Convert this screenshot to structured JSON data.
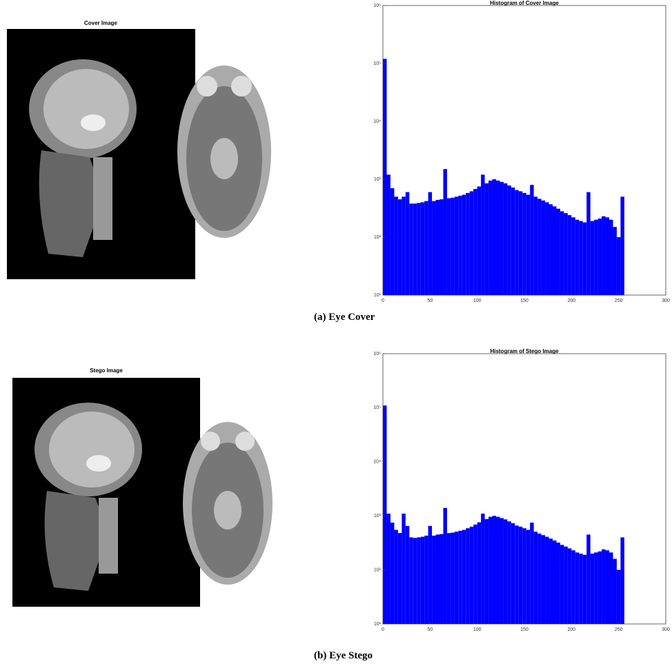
{
  "images": [
    {
      "title": "Cover Image"
    },
    {
      "title": "Stego Image"
    }
  ],
  "captions": [
    "(a) Eye Cover",
    "(b) Eye Stego"
  ],
  "chart_data": [
    {
      "type": "histogram",
      "title": "Histogram of Cover Image",
      "color": "#0000ff",
      "yscale": "log",
      "bins": [
        0,
        4,
        8,
        12,
        16,
        20,
        24,
        28,
        32,
        36,
        40,
        44,
        48,
        52,
        56,
        60,
        64,
        68,
        72,
        76,
        80,
        84,
        88,
        92,
        96,
        100,
        104,
        108,
        112,
        116,
        120,
        124,
        128,
        132,
        136,
        140,
        144,
        148,
        152,
        156,
        160,
        164,
        168,
        172,
        176,
        180,
        184,
        188,
        192,
        196,
        200,
        204,
        208,
        212,
        216,
        220,
        224,
        228,
        232,
        236,
        240,
        244,
        248,
        252,
        256
      ],
      "values": [
        120000,
        1200,
        700,
        500,
        450,
        500,
        600,
        380,
        380,
        390,
        400,
        420,
        600,
        420,
        440,
        450,
        1500,
        470,
        480,
        500,
        520,
        540,
        580,
        620,
        680,
        750,
        1200,
        850,
        950,
        1000,
        950,
        900,
        850,
        780,
        720,
        650,
        620,
        580,
        540,
        800,
        500,
        460,
        430,
        400,
        370,
        340,
        310,
        280,
        260,
        240,
        220,
        200,
        190,
        180,
        600,
        190,
        200,
        210,
        230,
        220,
        200,
        150,
        100,
        500
      ],
      "xlim": [
        0,
        300
      ],
      "xticks": [
        0,
        50,
        100,
        150,
        200,
        250,
        300
      ],
      "ylim": [
        10,
        1000000
      ],
      "yticks": [
        {
          "value": 10,
          "label": "10¹"
        },
        {
          "value": 100,
          "label": "10²"
        },
        {
          "value": 1000,
          "label": "10³"
        },
        {
          "value": 10000,
          "label": "10⁴"
        },
        {
          "value": 100000,
          "label": "10⁵"
        },
        {
          "value": 1000000,
          "label": "10⁶"
        }
      ]
    },
    {
      "type": "histogram",
      "title": "Histogram of Stego Image",
      "color": "#0000ff",
      "yscale": "log",
      "bins": [
        0,
        4,
        8,
        12,
        16,
        20,
        24,
        28,
        32,
        36,
        40,
        44,
        48,
        52,
        56,
        60,
        64,
        68,
        72,
        76,
        80,
        84,
        88,
        92,
        96,
        100,
        104,
        108,
        112,
        116,
        120,
        124,
        128,
        132,
        136,
        140,
        144,
        148,
        152,
        156,
        160,
        164,
        168,
        172,
        176,
        180,
        184,
        188,
        192,
        196,
        200,
        204,
        208,
        212,
        216,
        220,
        224,
        228,
        232,
        236,
        240,
        244,
        248,
        252,
        256
      ],
      "values": [
        110000,
        1100,
        750,
        550,
        480,
        1100,
        650,
        400,
        390,
        400,
        410,
        430,
        650,
        430,
        450,
        460,
        1400,
        480,
        490,
        510,
        530,
        550,
        590,
        630,
        690,
        760,
        1100,
        870,
        960,
        1000,
        960,
        910,
        860,
        790,
        730,
        660,
        630,
        590,
        550,
        750,
        510,
        470,
        440,
        410,
        380,
        350,
        320,
        290,
        270,
        250,
        230,
        210,
        200,
        190,
        450,
        200,
        210,
        220,
        240,
        230,
        210,
        160,
        100,
        400
      ],
      "xlim": [
        0,
        300
      ],
      "xticks": [
        0,
        50,
        100,
        150,
        200,
        250,
        300
      ],
      "ylim": [
        10,
        1000000
      ],
      "yticks": [
        {
          "value": 10,
          "label": "10¹"
        },
        {
          "value": 100,
          "label": "10²"
        },
        {
          "value": 1000,
          "label": "10³"
        },
        {
          "value": 10000,
          "label": "10⁴"
        },
        {
          "value": 100000,
          "label": "10⁵"
        },
        {
          "value": 1000000,
          "label": "10⁶"
        }
      ]
    }
  ]
}
